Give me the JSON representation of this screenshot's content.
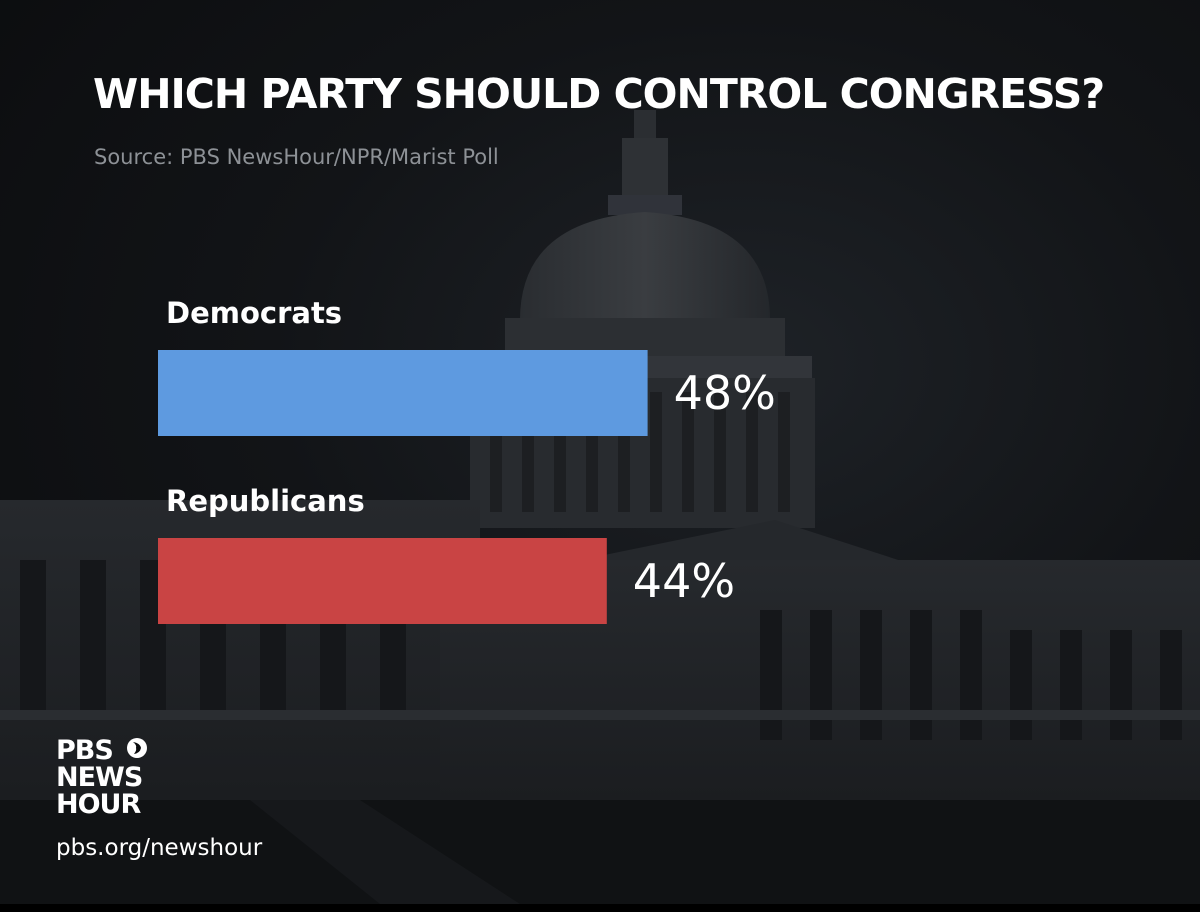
{
  "header": {
    "title": "WHICH PARTY SHOULD CONTROL CONGRESS?",
    "source": "Source: PBS NewsHour/NPR/Marist Poll"
  },
  "chart_data": {
    "type": "bar",
    "orientation": "horizontal",
    "categories": [
      "Democrats",
      "Republicans"
    ],
    "values": [
      48,
      44
    ],
    "value_labels": [
      "48%",
      "44%"
    ],
    "colors": [
      "#5e9ae0",
      "#c94444"
    ],
    "xlim": [
      0,
      100
    ],
    "grid": false,
    "legend": "none"
  },
  "branding": {
    "logo_lines": [
      "PBS",
      "NEWS",
      "HOUR"
    ],
    "url": "pbs.org/newshour"
  },
  "icons": {
    "logo_mark": "pbs-head-icon",
    "background": "capitol-building-image"
  }
}
